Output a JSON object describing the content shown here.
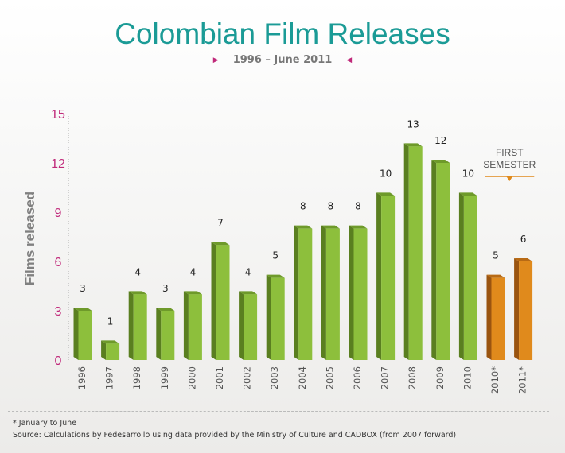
{
  "header": {
    "title": "Colombian Film Releases",
    "subtitle": "1996 – June 2011"
  },
  "chart_data": {
    "type": "bar",
    "categories": [
      "1996",
      "1997",
      "1998",
      "1999",
      "2000",
      "2001",
      "2002",
      "2003",
      "2004",
      "2005",
      "2006",
      "2007",
      "2008",
      "2009",
      "2010",
      "2010*",
      "2011*"
    ],
    "values": [
      3,
      1,
      4,
      3,
      4,
      7,
      4,
      5,
      8,
      8,
      8,
      10,
      13,
      12,
      10,
      5,
      6
    ],
    "ylabel": "Films released",
    "ylim": [
      0,
      15
    ],
    "yticks": [
      "0",
      "3",
      "6",
      "9",
      "12",
      "15"
    ],
    "annotation": [
      "FIRST",
      "SEMESTER"
    ],
    "colors": {
      "main": "#8dbf3c",
      "main_side": "#5a7f20",
      "main_top": "#6e9a2a",
      "semester": "#e08a1c",
      "semester_side": "#9a5410",
      "semester_top": "#b86a14",
      "tick": "#c0297a",
      "annotation_line": "#e08a1c"
    },
    "grid": false
  },
  "footnotes": {
    "note": "* January to June",
    "source": "Source: Calculations by Fedesarrollo using data provided by the Ministry of Culture and CADBOX (from 2007 forward)"
  }
}
